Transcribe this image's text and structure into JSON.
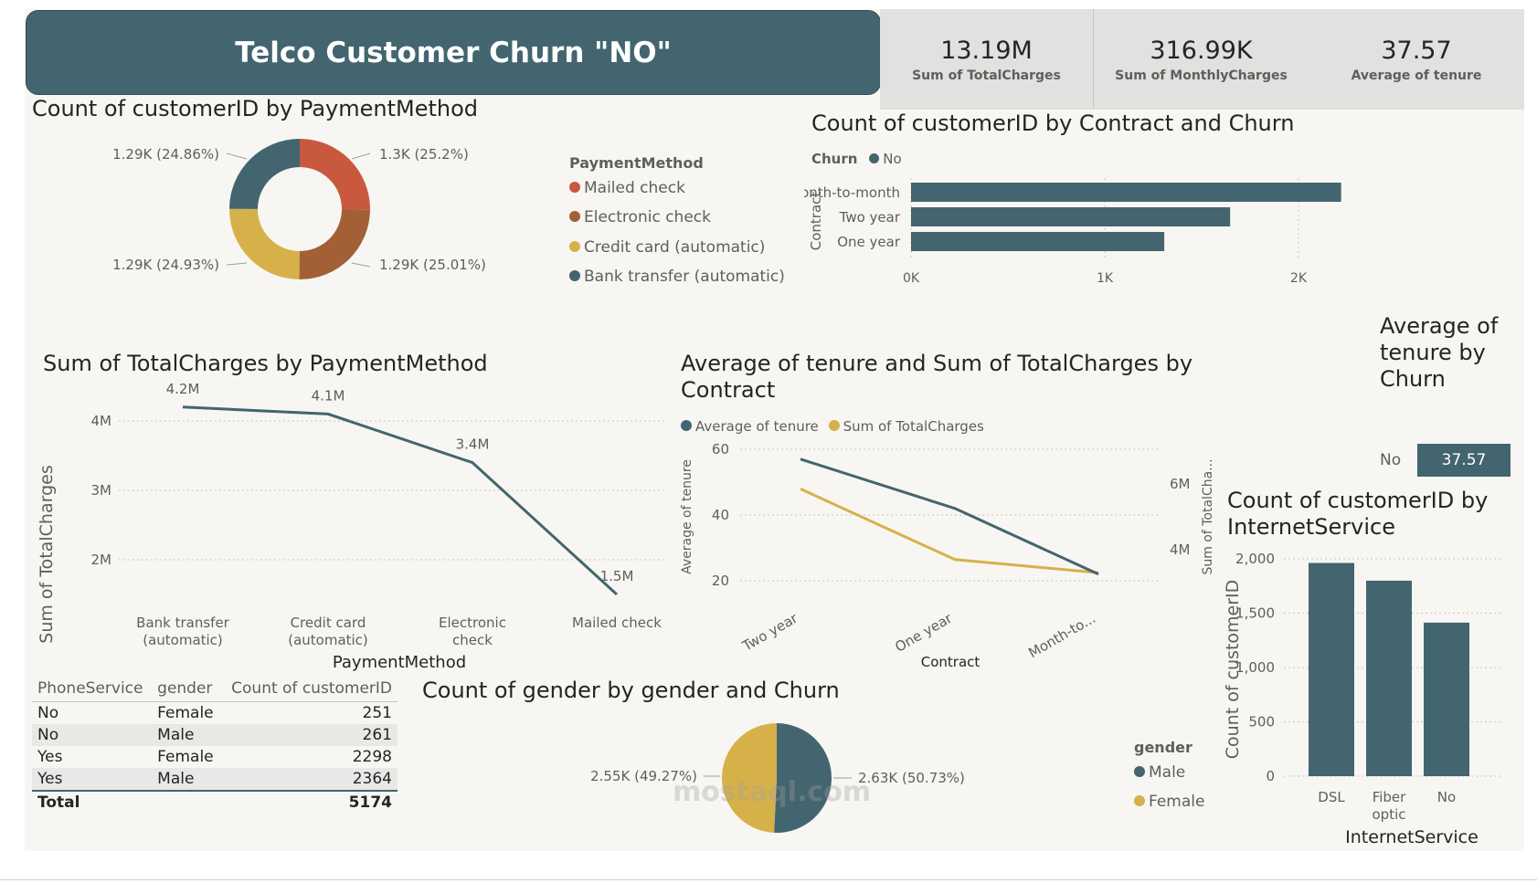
{
  "header": {
    "title": "Telco Customer Churn \"NO\""
  },
  "kpis": [
    {
      "value": "13.19M",
      "label": "Sum of TotalCharges"
    },
    {
      "value": "316.99K",
      "label": "Sum of MonthlyCharges"
    },
    {
      "value": "37.57",
      "label": "Average of tenure"
    }
  ],
  "colors": {
    "teal": "#43656f",
    "red": "#c8593f",
    "brown": "#a35f36",
    "gold": "#d6b14a",
    "canvas": "#f7f6f2"
  },
  "chart_data": [
    {
      "id": "payment-donut",
      "type": "pie",
      "title": "Count of customerID by PaymentMethod",
      "legend_title": "PaymentMethod",
      "categories": [
        "Mailed check",
        "Electronic check",
        "Credit card (automatic)",
        "Bank transfer (automatic)"
      ],
      "values": [
        1300,
        1290,
        1290,
        1290
      ],
      "percents": [
        25.2,
        25.01,
        24.93,
        24.86
      ],
      "data_labels": [
        "1.3K (25.2%)",
        "1.29K (25.01%)",
        "1.29K (24.93%)",
        "1.29K (24.86%)"
      ],
      "colors": [
        "#c8593f",
        "#a35f36",
        "#d6b14a",
        "#43656f"
      ]
    },
    {
      "id": "contract-bar",
      "type": "bar",
      "orientation": "horizontal",
      "title": "Count of customerID by Contract and Churn",
      "legend_title": "Churn",
      "series": [
        {
          "name": "No",
          "values": [
            2220,
            1647,
            1307
          ]
        }
      ],
      "categories": [
        "Month-to-month",
        "Two year",
        "One year"
      ],
      "ylabel": "Contract",
      "xticks": [
        "0K",
        "1K",
        "2K"
      ],
      "xlim": [
        0,
        2500
      ]
    },
    {
      "id": "totalcharges-line",
      "type": "line",
      "title": "Sum of TotalCharges by PaymentMethod",
      "categories": [
        "Bank transfer (automatic)",
        "Credit card (automatic)",
        "Electronic check",
        "Mailed check"
      ],
      "values": [
        4.2,
        4.1,
        3.4,
        1.5
      ],
      "data_labels": [
        "4.2M",
        "4.1M",
        "3.4M",
        "1.5M"
      ],
      "xlabel": "PaymentMethod",
      "ylabel": "Sum of TotalCharges",
      "yticks": [
        "2M",
        "3M",
        "4M"
      ],
      "ylim": [
        1.5,
        4.6
      ]
    },
    {
      "id": "tenure-combo",
      "type": "line",
      "title": "Average of tenure and Sum of TotalCharges by Contract",
      "categories": [
        "Two year",
        "One year",
        "Month-to..."
      ],
      "series": [
        {
          "name": "Average of tenure",
          "values": [
            57,
            42,
            22
          ],
          "axis": "left"
        },
        {
          "name": "Sum of TotalCharges",
          "values": [
            5.85,
            3.7,
            3.3
          ],
          "axis": "right"
        }
      ],
      "xlabel": "Contract",
      "ylabel": "Average of tenure",
      "y2label": "Sum of TotalCha...",
      "yticks": [
        "20",
        "40",
        "60"
      ],
      "y2ticks": [
        "4M",
        "6M"
      ],
      "ylim": [
        20,
        62
      ],
      "y2lim": [
        2.55,
        7.1
      ]
    },
    {
      "id": "tenure-card",
      "type": "table",
      "title": "Average of tenure by Churn",
      "categories": [
        "No"
      ],
      "values": [
        37.57
      ],
      "data_labels": [
        "37.57"
      ]
    },
    {
      "id": "gender-pie",
      "type": "pie",
      "title": "Count of gender by gender and Churn",
      "legend_title": "gender",
      "categories": [
        "Male",
        "Female"
      ],
      "values": [
        2630,
        2550
      ],
      "percents": [
        50.73,
        49.27
      ],
      "data_labels": [
        "2.63K (50.73%)",
        "2.55K (49.27%)"
      ],
      "colors": [
        "#43656f",
        "#d6b14a"
      ]
    },
    {
      "id": "internet-bar",
      "type": "bar",
      "title": "Count of customerID by InternetService",
      "categories": [
        "DSL",
        "Fiber optic",
        "No"
      ],
      "values": [
        1962,
        1799,
        1413
      ],
      "xlabel": "InternetService",
      "ylabel": "Count of customerID",
      "yticks": [
        "0",
        "500",
        "1,000",
        "1,500",
        "2,000"
      ],
      "ylim": [
        0,
        2000
      ]
    },
    {
      "id": "phone-gender-table",
      "type": "table",
      "columns": [
        "PhoneService",
        "gender",
        "Count of customerID"
      ],
      "rows": [
        [
          "No",
          "Female",
          "251"
        ],
        [
          "No",
          "Male",
          "261"
        ],
        [
          "Yes",
          "Female",
          "2298"
        ],
        [
          "Yes",
          "Male",
          "2364"
        ]
      ],
      "total": [
        "Total",
        "",
        "5174"
      ]
    }
  ],
  "watermark": {
    "text": "mostaql.com"
  }
}
